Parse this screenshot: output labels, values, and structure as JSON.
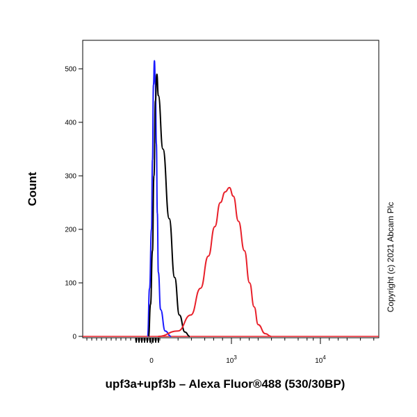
{
  "chart_data": {
    "type": "line",
    "title": "",
    "xlabel": "upf3a+upf3b – Alexa Fluor®488 (530/30BP)",
    "ylabel": "Count",
    "ylim": [
      0,
      550
    ],
    "y_ticks": [
      0,
      100,
      200,
      300,
      400,
      500
    ],
    "x_ticks": [
      {
        "value": 0,
        "label": "0"
      },
      {
        "value": 1000,
        "label": "10",
        "exponent": "3"
      },
      {
        "value": 10000,
        "label": "10",
        "exponent": "4"
      }
    ],
    "x_scale": "biexponential",
    "grid": false,
    "legend": "none",
    "annotation": "Copyright (c) 2021 Abcam Plc",
    "series": [
      {
        "color": "#1a1aff",
        "x": [
          -80,
          -40,
          0,
          20,
          40,
          60,
          80,
          100,
          120,
          140,
          160,
          180,
          210
        ],
        "values": [
          0,
          90,
          200,
          330,
          470,
          515,
          470,
          360,
          230,
          120,
          50,
          10,
          0
        ]
      },
      {
        "color": "#000000",
        "x": [
          -60,
          -20,
          20,
          50,
          80,
          110,
          140,
          170,
          200,
          230,
          260,
          300,
          340
        ],
        "values": [
          0,
          60,
          160,
          300,
          440,
          490,
          450,
          350,
          220,
          110,
          40,
          8,
          0
        ]
      },
      {
        "color": "#e8202a",
        "x": [
          150,
          250,
          350,
          450,
          550,
          650,
          750,
          850,
          950,
          1050,
          1200,
          1400,
          1600,
          1800,
          2000,
          2400,
          2800
        ],
        "values": [
          0,
          10,
          40,
          90,
          150,
          205,
          250,
          270,
          278,
          262,
          215,
          160,
          100,
          55,
          22,
          5,
          0
        ]
      }
    ]
  }
}
